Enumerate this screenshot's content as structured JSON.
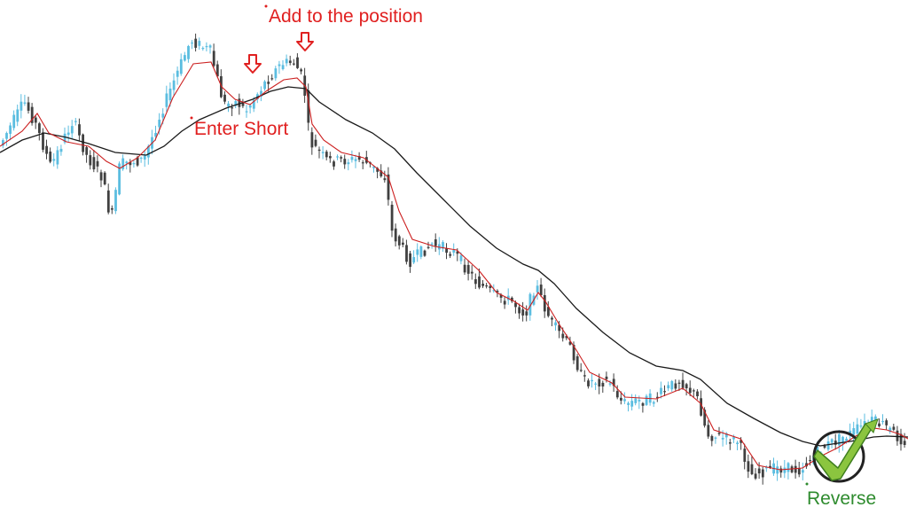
{
  "chart_data": {
    "type": "candlestick",
    "title": "",
    "xlabel": "",
    "ylabel": "",
    "grid": false,
    "legend": "none",
    "axes_visible": false,
    "ylim": [
      0,
      581
    ],
    "colors": {
      "bull_candle": "#5bbde0",
      "bear_candle": "#404040",
      "fast_ma": "#cc2020",
      "slow_ma": "#1a1a1a",
      "annotation_red": "#e02020",
      "annotation_green": "#2e8b2e",
      "check_green": "#8bc53f",
      "check_dark": "#3f7f1f",
      "circle": "#222222"
    },
    "price_path": [
      [
        0,
        168
      ],
      [
        30,
        115
      ],
      [
        42,
        138
      ],
      [
        60,
        188
      ],
      [
        85,
        135
      ],
      [
        100,
        175
      ],
      [
        118,
        200
      ],
      [
        128,
        250
      ],
      [
        138,
        185
      ],
      [
        165,
        180
      ],
      [
        185,
        125
      ],
      [
        218,
        45
      ],
      [
        240,
        58
      ],
      [
        255,
        118
      ],
      [
        270,
        115
      ],
      [
        280,
        125
      ],
      [
        300,
        95
      ],
      [
        320,
        72
      ],
      [
        335,
        70
      ],
      [
        345,
        92
      ],
      [
        352,
        160
      ],
      [
        372,
        182
      ],
      [
        410,
        180
      ],
      [
        438,
        200
      ],
      [
        444,
        260
      ],
      [
        465,
        295
      ],
      [
        490,
        275
      ],
      [
        515,
        285
      ],
      [
        540,
        318
      ],
      [
        560,
        333
      ],
      [
        580,
        340
      ],
      [
        595,
        355
      ],
      [
        607,
        320
      ],
      [
        612,
        335
      ],
      [
        625,
        365
      ],
      [
        648,
        395
      ],
      [
        660,
        430
      ],
      [
        690,
        430
      ],
      [
        705,
        455
      ],
      [
        740,
        450
      ],
      [
        770,
        428
      ],
      [
        790,
        450
      ],
      [
        800,
        490
      ],
      [
        835,
        498
      ],
      [
        850,
        535
      ],
      [
        880,
        528
      ],
      [
        905,
        530
      ],
      [
        930,
        505
      ],
      [
        960,
        490
      ],
      [
        985,
        475
      ],
      [
        1000,
        480
      ],
      [
        1015,
        493
      ],
      [
        1024,
        498
      ]
    ],
    "fast_ma_path": [
      [
        0,
        165
      ],
      [
        25,
        148
      ],
      [
        42,
        128
      ],
      [
        55,
        150
      ],
      [
        75,
        160
      ],
      [
        100,
        165
      ],
      [
        120,
        182
      ],
      [
        135,
        190
      ],
      [
        155,
        178
      ],
      [
        175,
        158
      ],
      [
        195,
        110
      ],
      [
        218,
        72
      ],
      [
        238,
        70
      ],
      [
        250,
        98
      ],
      [
        265,
        112
      ],
      [
        282,
        118
      ],
      [
        300,
        103
      ],
      [
        320,
        90
      ],
      [
        335,
        88
      ],
      [
        345,
        98
      ],
      [
        352,
        140
      ],
      [
        365,
        158
      ],
      [
        385,
        172
      ],
      [
        410,
        178
      ],
      [
        438,
        200
      ],
      [
        450,
        238
      ],
      [
        465,
        270
      ],
      [
        490,
        278
      ],
      [
        515,
        282
      ],
      [
        540,
        305
      ],
      [
        560,
        330
      ],
      [
        580,
        340
      ],
      [
        595,
        350
      ],
      [
        607,
        330
      ],
      [
        615,
        340
      ],
      [
        630,
        365
      ],
      [
        650,
        395
      ],
      [
        665,
        420
      ],
      [
        690,
        432
      ],
      [
        705,
        448
      ],
      [
        740,
        450
      ],
      [
        770,
        438
      ],
      [
        790,
        455
      ],
      [
        805,
        485
      ],
      [
        835,
        495
      ],
      [
        855,
        525
      ],
      [
        880,
        530
      ],
      [
        905,
        528
      ],
      [
        925,
        515
      ],
      [
        945,
        505
      ],
      [
        965,
        492
      ],
      [
        985,
        483
      ],
      [
        1000,
        485
      ],
      [
        1015,
        490
      ],
      [
        1024,
        495
      ]
    ],
    "slow_ma_path": [
      [
        0,
        172
      ],
      [
        25,
        158
      ],
      [
        50,
        150
      ],
      [
        75,
        155
      ],
      [
        100,
        162
      ],
      [
        130,
        172
      ],
      [
        165,
        175
      ],
      [
        185,
        165
      ],
      [
        205,
        148
      ],
      [
        225,
        135
      ],
      [
        255,
        122
      ],
      [
        285,
        112
      ],
      [
        305,
        103
      ],
      [
        325,
        98
      ],
      [
        345,
        100
      ],
      [
        360,
        115
      ],
      [
        390,
        135
      ],
      [
        420,
        150
      ],
      [
        445,
        168
      ],
      [
        470,
        195
      ],
      [
        500,
        225
      ],
      [
        530,
        255
      ],
      [
        560,
        280
      ],
      [
        590,
        298
      ],
      [
        607,
        305
      ],
      [
        625,
        320
      ],
      [
        650,
        348
      ],
      [
        680,
        375
      ],
      [
        710,
        398
      ],
      [
        740,
        413
      ],
      [
        770,
        418
      ],
      [
        790,
        428
      ],
      [
        820,
        455
      ],
      [
        850,
        472
      ],
      [
        880,
        488
      ],
      [
        905,
        498
      ],
      [
        925,
        503
      ],
      [
        945,
        500
      ],
      [
        965,
        497
      ],
      [
        985,
        493
      ],
      [
        1000,
        492
      ],
      [
        1024,
        493
      ]
    ],
    "annotations": [
      {
        "text": "Add to the position",
        "color": "red"
      },
      {
        "text": "Enter Short",
        "color": "red"
      },
      {
        "text": "Reverse",
        "color": "green"
      }
    ],
    "markers": [
      {
        "type": "down-arrow",
        "note": "first add"
      },
      {
        "type": "down-arrow",
        "note": "second add"
      },
      {
        "type": "check-in-circle",
        "note": "reverse signal"
      }
    ]
  }
}
